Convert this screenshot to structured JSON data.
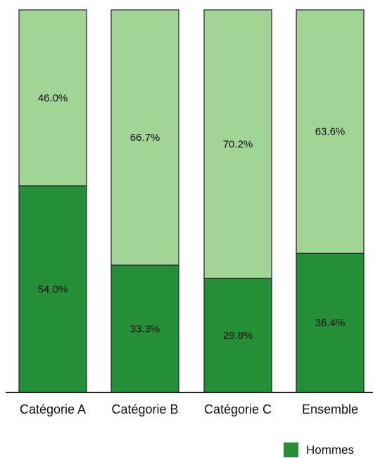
{
  "chart_data": {
    "type": "bar",
    "stacked": true,
    "percent": true,
    "categories": [
      "Catégorie A",
      "Catégorie B",
      "Catégorie C",
      "Ensemble"
    ],
    "series": [
      {
        "name": "Hommes",
        "values": [
          54.0,
          33.3,
          29.8,
          36.4
        ],
        "color": "#258f38",
        "labels": [
          "54.0%",
          "33.3%",
          "29.8%",
          "36.4%"
        ]
      },
      {
        "values": [
          46.0,
          66.7,
          70.2,
          63.6
        ],
        "color": "#a2d496",
        "labels": [
          "46.0%",
          "66.7%",
          "70.2%",
          "63.6%"
        ]
      }
    ],
    "ylim": [
      0,
      100
    ],
    "grid": false,
    "legend": {
      "position": "bottom-right",
      "entries": [
        "Hommes"
      ]
    }
  },
  "legend": {
    "label": "Hommes",
    "color": "#258f38"
  }
}
